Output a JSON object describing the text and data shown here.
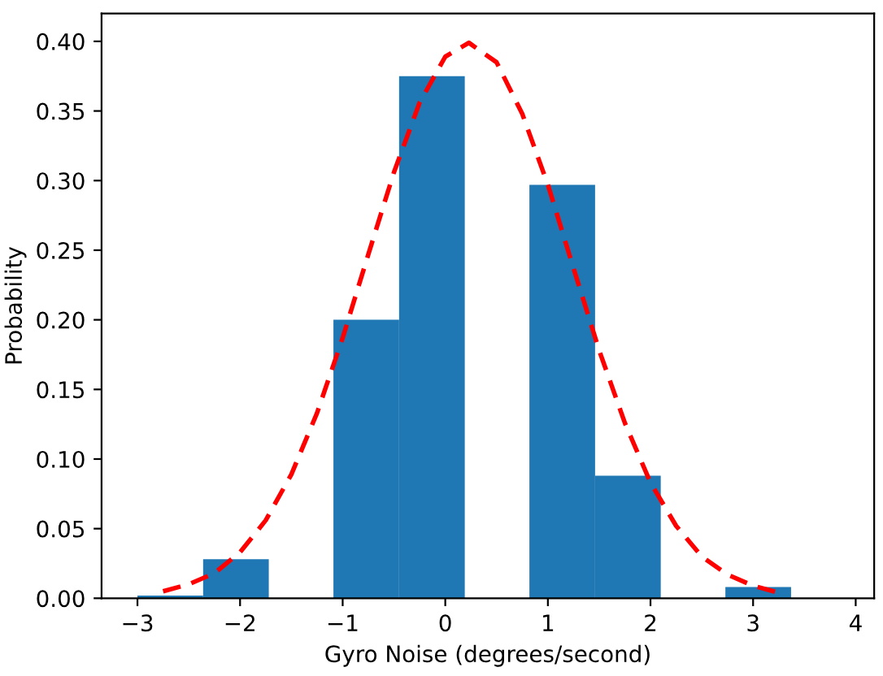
{
  "chart_data": {
    "type": "histogram",
    "xlabel": "Gyro Noise (degrees/second)",
    "ylabel": "Probability",
    "bins": [
      -3.0,
      -2.36,
      -1.72,
      -1.09,
      -0.45,
      0.19,
      0.82,
      1.46,
      2.1,
      2.73,
      3.37
    ],
    "values": [
      0.002,
      0.028,
      0,
      0.2,
      0.375,
      0,
      0.297,
      0.088,
      0,
      0.008
    ],
    "color": "#1f77b4",
    "series": [
      {
        "type": "line",
        "color": "#ff0000",
        "line_style": "dashed",
        "x": [
          -2.75,
          -2.5,
          -2.25,
          -2.0,
          -1.75,
          -1.5,
          -1.25,
          -1.0,
          -0.75,
          -0.5,
          -0.25,
          0.0,
          0.23,
          0.5,
          0.75,
          1.0,
          1.25,
          1.5,
          1.75,
          2.0,
          2.25,
          2.5,
          2.75,
          3.0,
          3.25
        ],
        "values": [
          0.005,
          0.01,
          0.018,
          0.033,
          0.056,
          0.089,
          0.133,
          0.187,
          0.247,
          0.306,
          0.356,
          0.389,
          0.399,
          0.385,
          0.348,
          0.297,
          0.237,
          0.178,
          0.126,
          0.083,
          0.052,
          0.03,
          0.017,
          0.009,
          0.004
        ]
      }
    ],
    "xlim": [
      -3.35,
      4.18
    ],
    "ylim": [
      0,
      0.42
    ],
    "xticks": [
      {
        "value": -3,
        "label": "−3"
      },
      {
        "value": -2,
        "label": "−2"
      },
      {
        "value": -1,
        "label": "−1"
      },
      0,
      1,
      2,
      3,
      4
    ],
    "yticks": [
      {
        "value": 0,
        "label": "0.00"
      },
      {
        "value": 0.05,
        "label": "0.05"
      },
      {
        "value": 0.1,
        "label": "0.10"
      },
      {
        "value": 0.15,
        "label": "0.15"
      },
      {
        "value": 0.2,
        "label": "0.20"
      },
      {
        "value": 0.25,
        "label": "0.25"
      },
      {
        "value": 0.3,
        "label": "0.30"
      },
      {
        "value": 0.35,
        "label": "0.35"
      },
      {
        "value": 0.4,
        "label": "0.40"
      }
    ],
    "grid": false
  }
}
